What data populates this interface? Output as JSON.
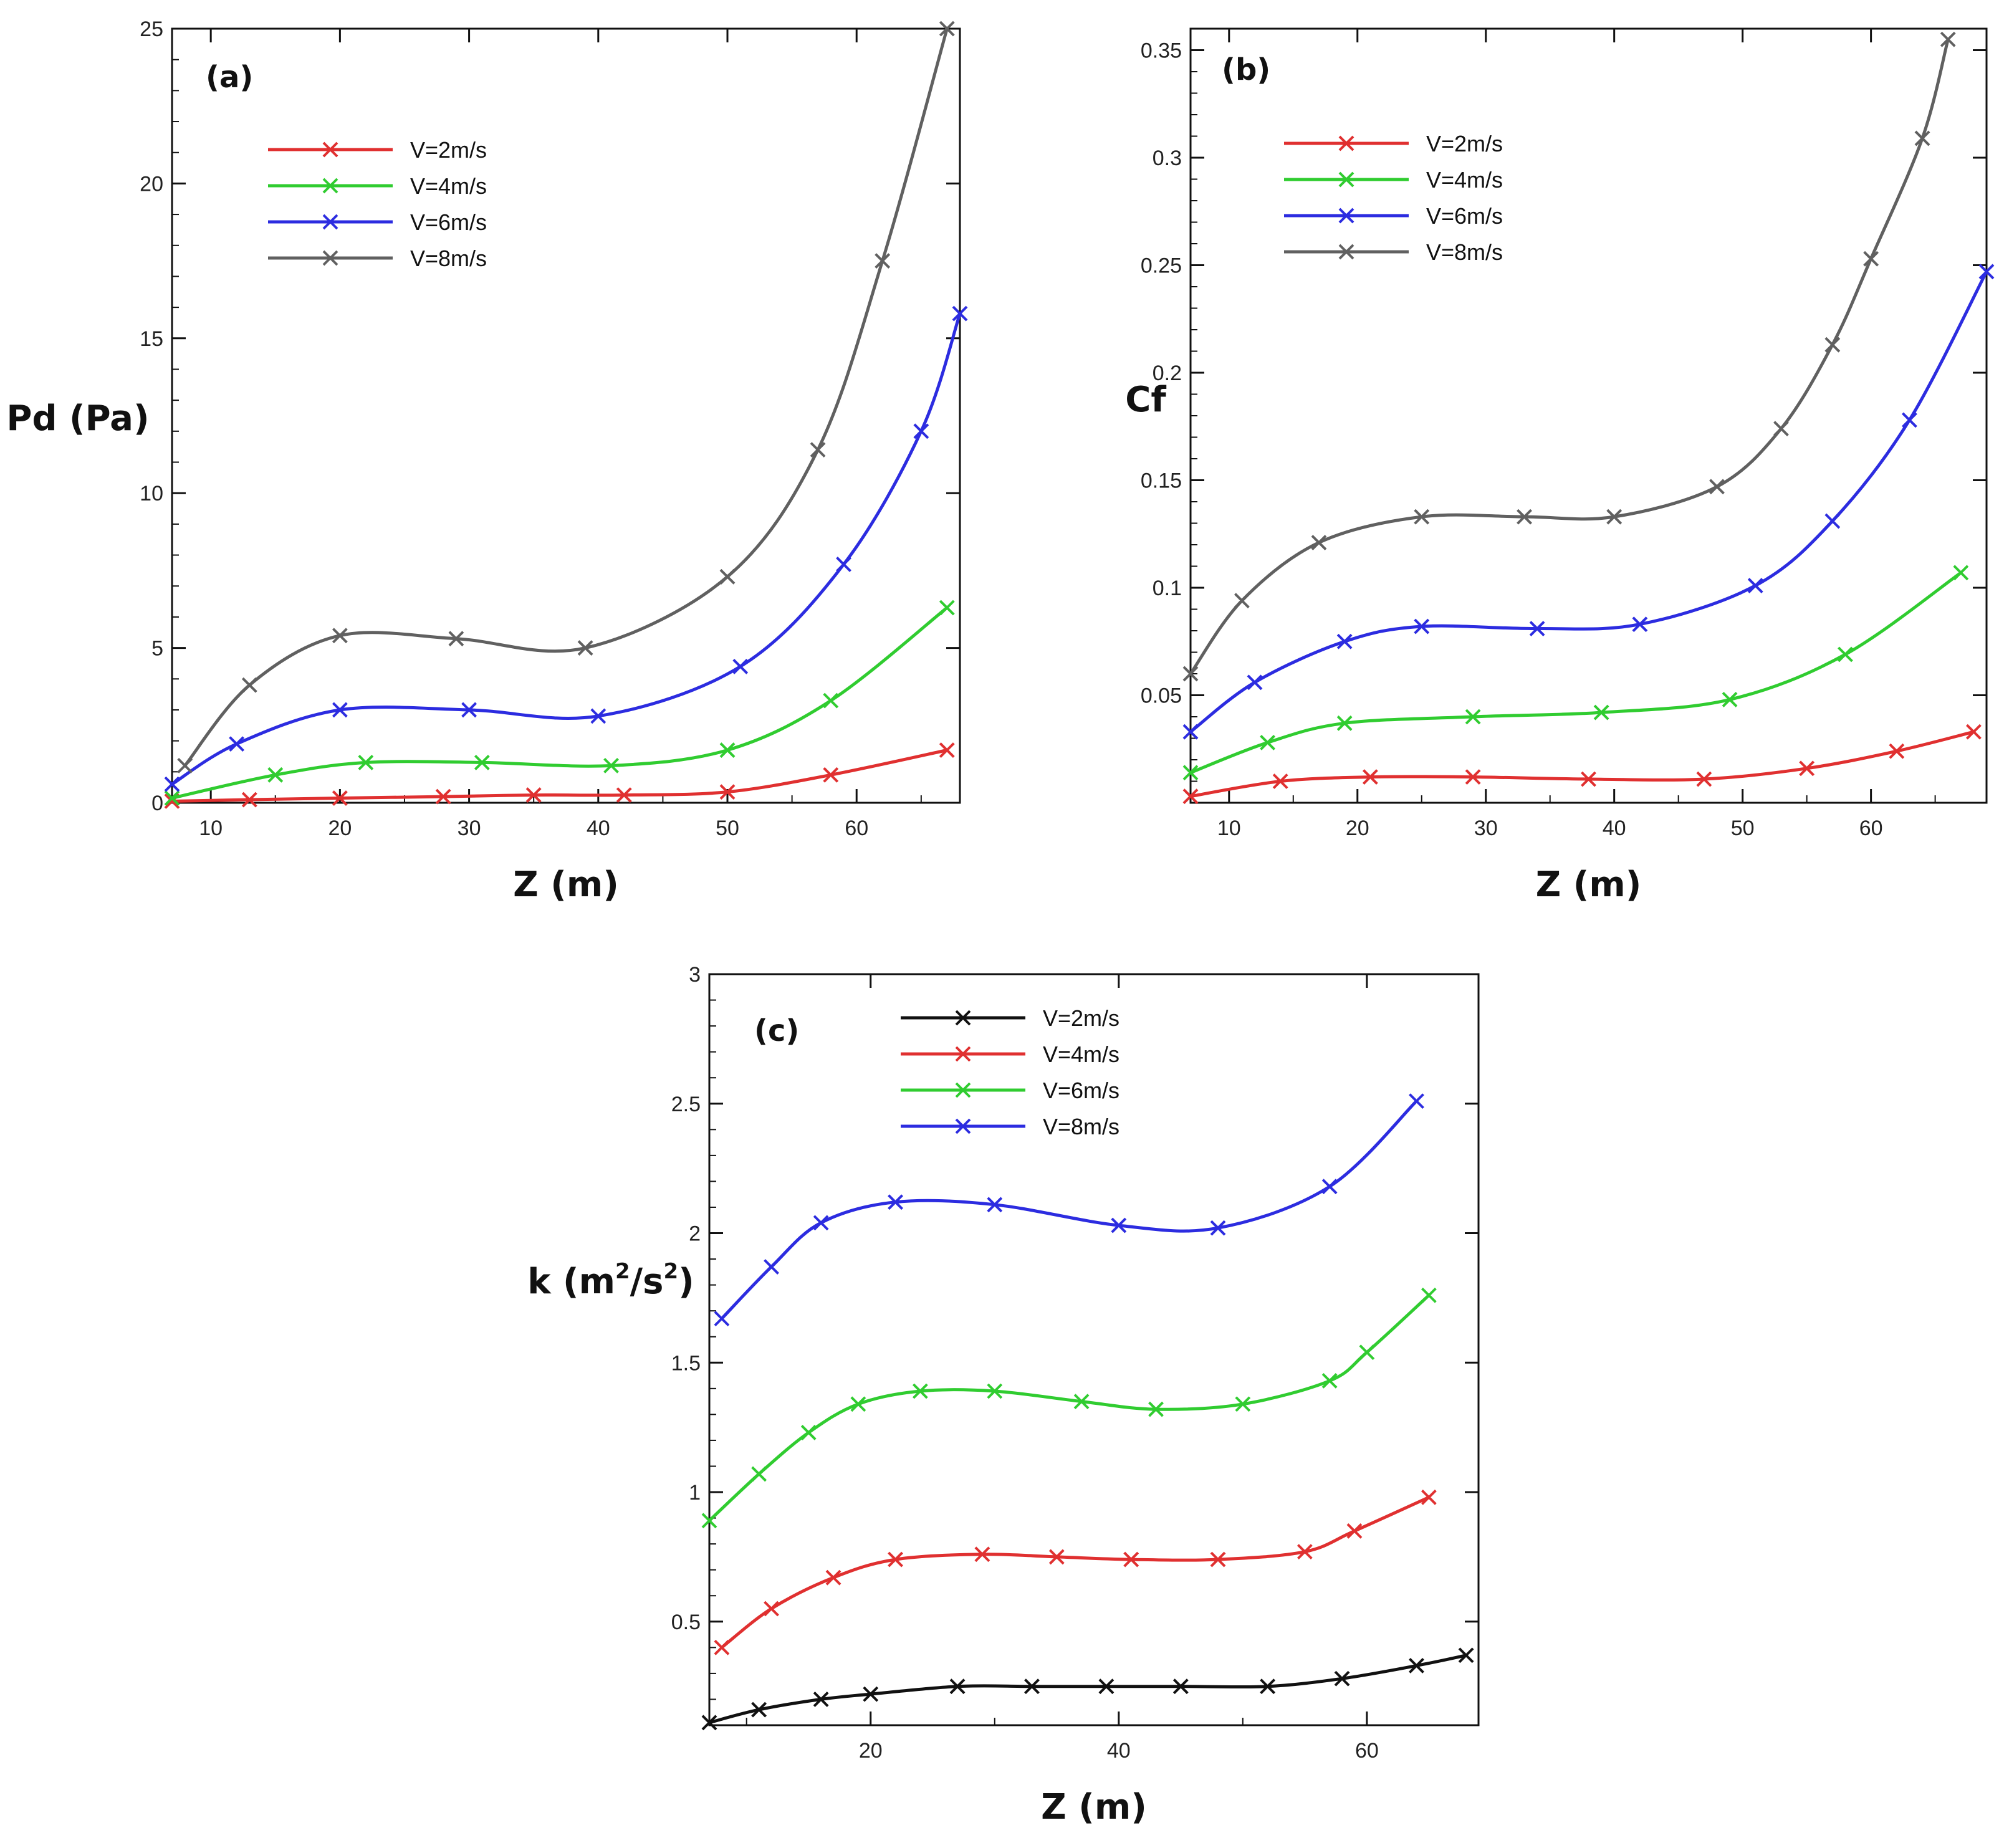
{
  "charts": [
    {
      "panel_label": "(a)",
      "xlabel": "Z (m)",
      "ylabel": "Pd (Pa)",
      "ylabel_sup": "",
      "xticks": [
        10,
        20,
        30,
        40,
        50,
        60
      ],
      "yticks": [
        "0",
        "5",
        "10",
        "15",
        "20",
        "25"
      ]
    },
    {
      "panel_label": "(b)",
      "xlabel": "Z (m)",
      "ylabel": "Cf",
      "ylabel_sup": "",
      "xticks": [
        10,
        20,
        30,
        40,
        50,
        60
      ],
      "yticks": [
        "0.05",
        "0.1",
        "0.15",
        "0.2",
        "0.25",
        "0.3",
        "0.35"
      ]
    },
    {
      "panel_label": "(c)",
      "xlabel": "Z (m)",
      "ylabel": "k (m2/s2)",
      "ylabel_sup": "2",
      "xticks": [
        20,
        40,
        60
      ],
      "yticks": [
        "0.5",
        "1",
        "1.5",
        "2",
        "2.5",
        "3"
      ]
    }
  ],
  "chart_data": [
    {
      "type": "line",
      "title": "(a)",
      "xlabel": "Z (m)",
      "ylabel": "Pd (Pa)",
      "xlim": [
        7,
        68
      ],
      "ylim": [
        0,
        25
      ],
      "legend_position": "upper-left",
      "series": [
        {
          "name": "V=2m/s",
          "color": "#e03030",
          "x": [
            7,
            13,
            20,
            28,
            35,
            42,
            50,
            58,
            67
          ],
          "y": [
            0.05,
            0.1,
            0.15,
            0.2,
            0.25,
            0.25,
            0.35,
            0.9,
            1.7
          ]
        },
        {
          "name": "V=4m/s",
          "color": "#30cc30",
          "x": [
            7,
            15,
            22,
            31,
            41,
            50,
            58,
            67
          ],
          "y": [
            0.15,
            0.9,
            1.3,
            1.3,
            1.2,
            1.7,
            3.3,
            6.3
          ]
        },
        {
          "name": "V=6m/s",
          "color": "#2c2ce0",
          "x": [
            7,
            12,
            20,
            30,
            40,
            51,
            59,
            65,
            68
          ],
          "y": [
            0.6,
            1.9,
            3.0,
            3.0,
            2.8,
            4.4,
            7.7,
            12.0,
            15.8
          ]
        },
        {
          "name": "V=8m/s",
          "color": "#606060",
          "x": [
            8,
            13,
            20,
            29,
            39,
            50,
            57,
            62,
            67
          ],
          "y": [
            1.2,
            3.8,
            5.4,
            5.3,
            5.0,
            7.3,
            11.4,
            17.5,
            25.0
          ]
        }
      ]
    },
    {
      "type": "line",
      "title": "(b)",
      "xlabel": "Z (m)",
      "ylabel": "Cf",
      "xlim": [
        7,
        69
      ],
      "ylim": [
        0,
        0.36
      ],
      "legend_position": "upper-left",
      "series": [
        {
          "name": "V=2m/s",
          "color": "#e03030",
          "x": [
            7,
            14,
            21,
            29,
            38,
            47,
            55,
            62,
            68
          ],
          "y": [
            0.003,
            0.01,
            0.012,
            0.012,
            0.011,
            0.011,
            0.016,
            0.024,
            0.033
          ]
        },
        {
          "name": "V=4m/s",
          "color": "#30cc30",
          "x": [
            7,
            13,
            19,
            29,
            39,
            49,
            58,
            67
          ],
          "y": [
            0.014,
            0.028,
            0.037,
            0.04,
            0.042,
            0.048,
            0.069,
            0.107
          ]
        },
        {
          "name": "V=6m/s",
          "color": "#2c2ce0",
          "x": [
            7,
            12,
            19,
            25,
            34,
            42,
            51,
            57,
            63,
            69
          ],
          "y": [
            0.033,
            0.056,
            0.075,
            0.082,
            0.081,
            0.083,
            0.101,
            0.131,
            0.178,
            0.247
          ]
        },
        {
          "name": "V=8m/s",
          "color": "#606060",
          "x": [
            7,
            11,
            17,
            25,
            33,
            40,
            48,
            53,
            57,
            60,
            64,
            66
          ],
          "y": [
            0.06,
            0.094,
            0.121,
            0.133,
            0.133,
            0.133,
            0.147,
            0.174,
            0.213,
            0.253,
            0.309,
            0.355
          ]
        }
      ]
    },
    {
      "type": "line",
      "title": "(c)",
      "xlabel": "Z (m)",
      "ylabel": "k (m2/s2)",
      "xlim": [
        7,
        69
      ],
      "ylim": [
        0.1,
        3.0
      ],
      "legend_position": "upper-left",
      "series": [
        {
          "name": "V=2m/s",
          "color": "#111111",
          "x": [
            7,
            11,
            16,
            20,
            27,
            33,
            39,
            45,
            52,
            58,
            64,
            68
          ],
          "y": [
            0.11,
            0.16,
            0.2,
            0.22,
            0.25,
            0.25,
            0.25,
            0.25,
            0.25,
            0.28,
            0.33,
            0.37
          ]
        },
        {
          "name": "V=4m/s",
          "color": "#e03030",
          "x": [
            8,
            12,
            17,
            22,
            29,
            35,
            41,
            48,
            55,
            59,
            65
          ],
          "y": [
            0.4,
            0.55,
            0.67,
            0.74,
            0.76,
            0.75,
            0.74,
            0.74,
            0.77,
            0.85,
            0.98
          ]
        },
        {
          "name": "V=6m/s",
          "color": "#30cc30",
          "x": [
            7,
            11,
            15,
            19,
            24,
            30,
            37,
            43,
            50,
            57,
            60,
            65
          ],
          "y": [
            0.89,
            1.07,
            1.23,
            1.34,
            1.39,
            1.39,
            1.35,
            1.32,
            1.34,
            1.43,
            1.54,
            1.76
          ]
        },
        {
          "name": "V=8m/s",
          "color": "#2c2ce0",
          "x": [
            8,
            12,
            16,
            22,
            30,
            40,
            48,
            57,
            64
          ],
          "y": [
            1.67,
            1.87,
            2.04,
            2.12,
            2.11,
            2.03,
            2.02,
            2.18,
            2.51
          ]
        }
      ]
    }
  ]
}
